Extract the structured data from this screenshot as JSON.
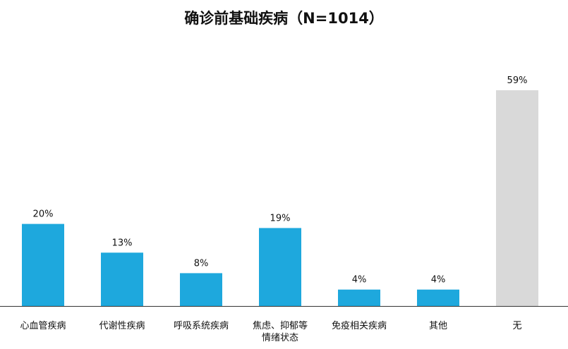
{
  "chart_data": {
    "type": "bar",
    "title": "确诊前基础疾病（N=1014）",
    "categories": [
      "心血管疾病",
      "代谢性疾病",
      "呼吸系统疾病",
      "焦虑、抑郁等情绪状态",
      "免疫相关疾病",
      "其他",
      "无"
    ],
    "values": [
      20,
      13,
      8,
      19,
      4,
      4,
      59
    ],
    "data_labels": [
      "20%",
      "13%",
      "8%",
      "19%",
      "4%",
      "4%",
      "59%"
    ],
    "unit": "%",
    "xlabel": "",
    "ylabel": "",
    "grid": false,
    "colors": [
      "#1EA8DD",
      "#1EA8DD",
      "#1EA8DD",
      "#1EA8DD",
      "#1EA8DD",
      "#1EA8DD",
      "#D9D9D9"
    ]
  }
}
